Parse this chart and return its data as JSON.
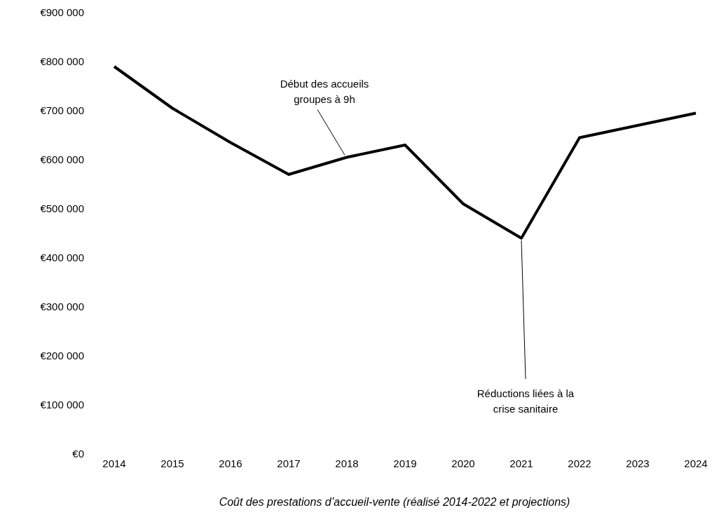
{
  "chart_data": {
    "type": "line",
    "xlabel": "Coût des prestations d’accueil-vente (réalisé 2014-2022 et projections)",
    "categories": [
      "2014",
      "2015",
      "2016",
      "2017",
      "2018",
      "2019",
      "2020",
      "2021",
      "2022",
      "2023",
      "2024"
    ],
    "series": [
      {
        "color": "#000000",
        "values": [
          790000,
          705000,
          635000,
          570000,
          605000,
          630000,
          510000,
          440000,
          645000,
          670000,
          695000
        ]
      }
    ],
    "ylim": [
      0,
      900000
    ],
    "yticks": [
      {
        "value": 0,
        "label": "€0"
      },
      {
        "value": 100000,
        "label": "€100 000"
      },
      {
        "value": 200000,
        "label": "€200 000"
      },
      {
        "value": 300000,
        "label": "€300 000"
      },
      {
        "value": 400000,
        "label": "€400 000"
      },
      {
        "value": 500000,
        "label": "€500 000"
      },
      {
        "value": 600000,
        "label": "€600 000"
      },
      {
        "value": 700000,
        "label": "€700 000"
      },
      {
        "value": 800000,
        "label": "€800 000"
      },
      {
        "value": 900000,
        "label": "€900 000"
      }
    ],
    "grid": false,
    "legend": false,
    "marker": "none",
    "line_style": "solid",
    "annotations": [
      {
        "text": "Début des accueils groupes à 9h",
        "x": "2018",
        "y": 605000
      },
      {
        "text": "Réductions liées à la crise sanitaire",
        "x": "2021",
        "y": 440000
      }
    ]
  }
}
